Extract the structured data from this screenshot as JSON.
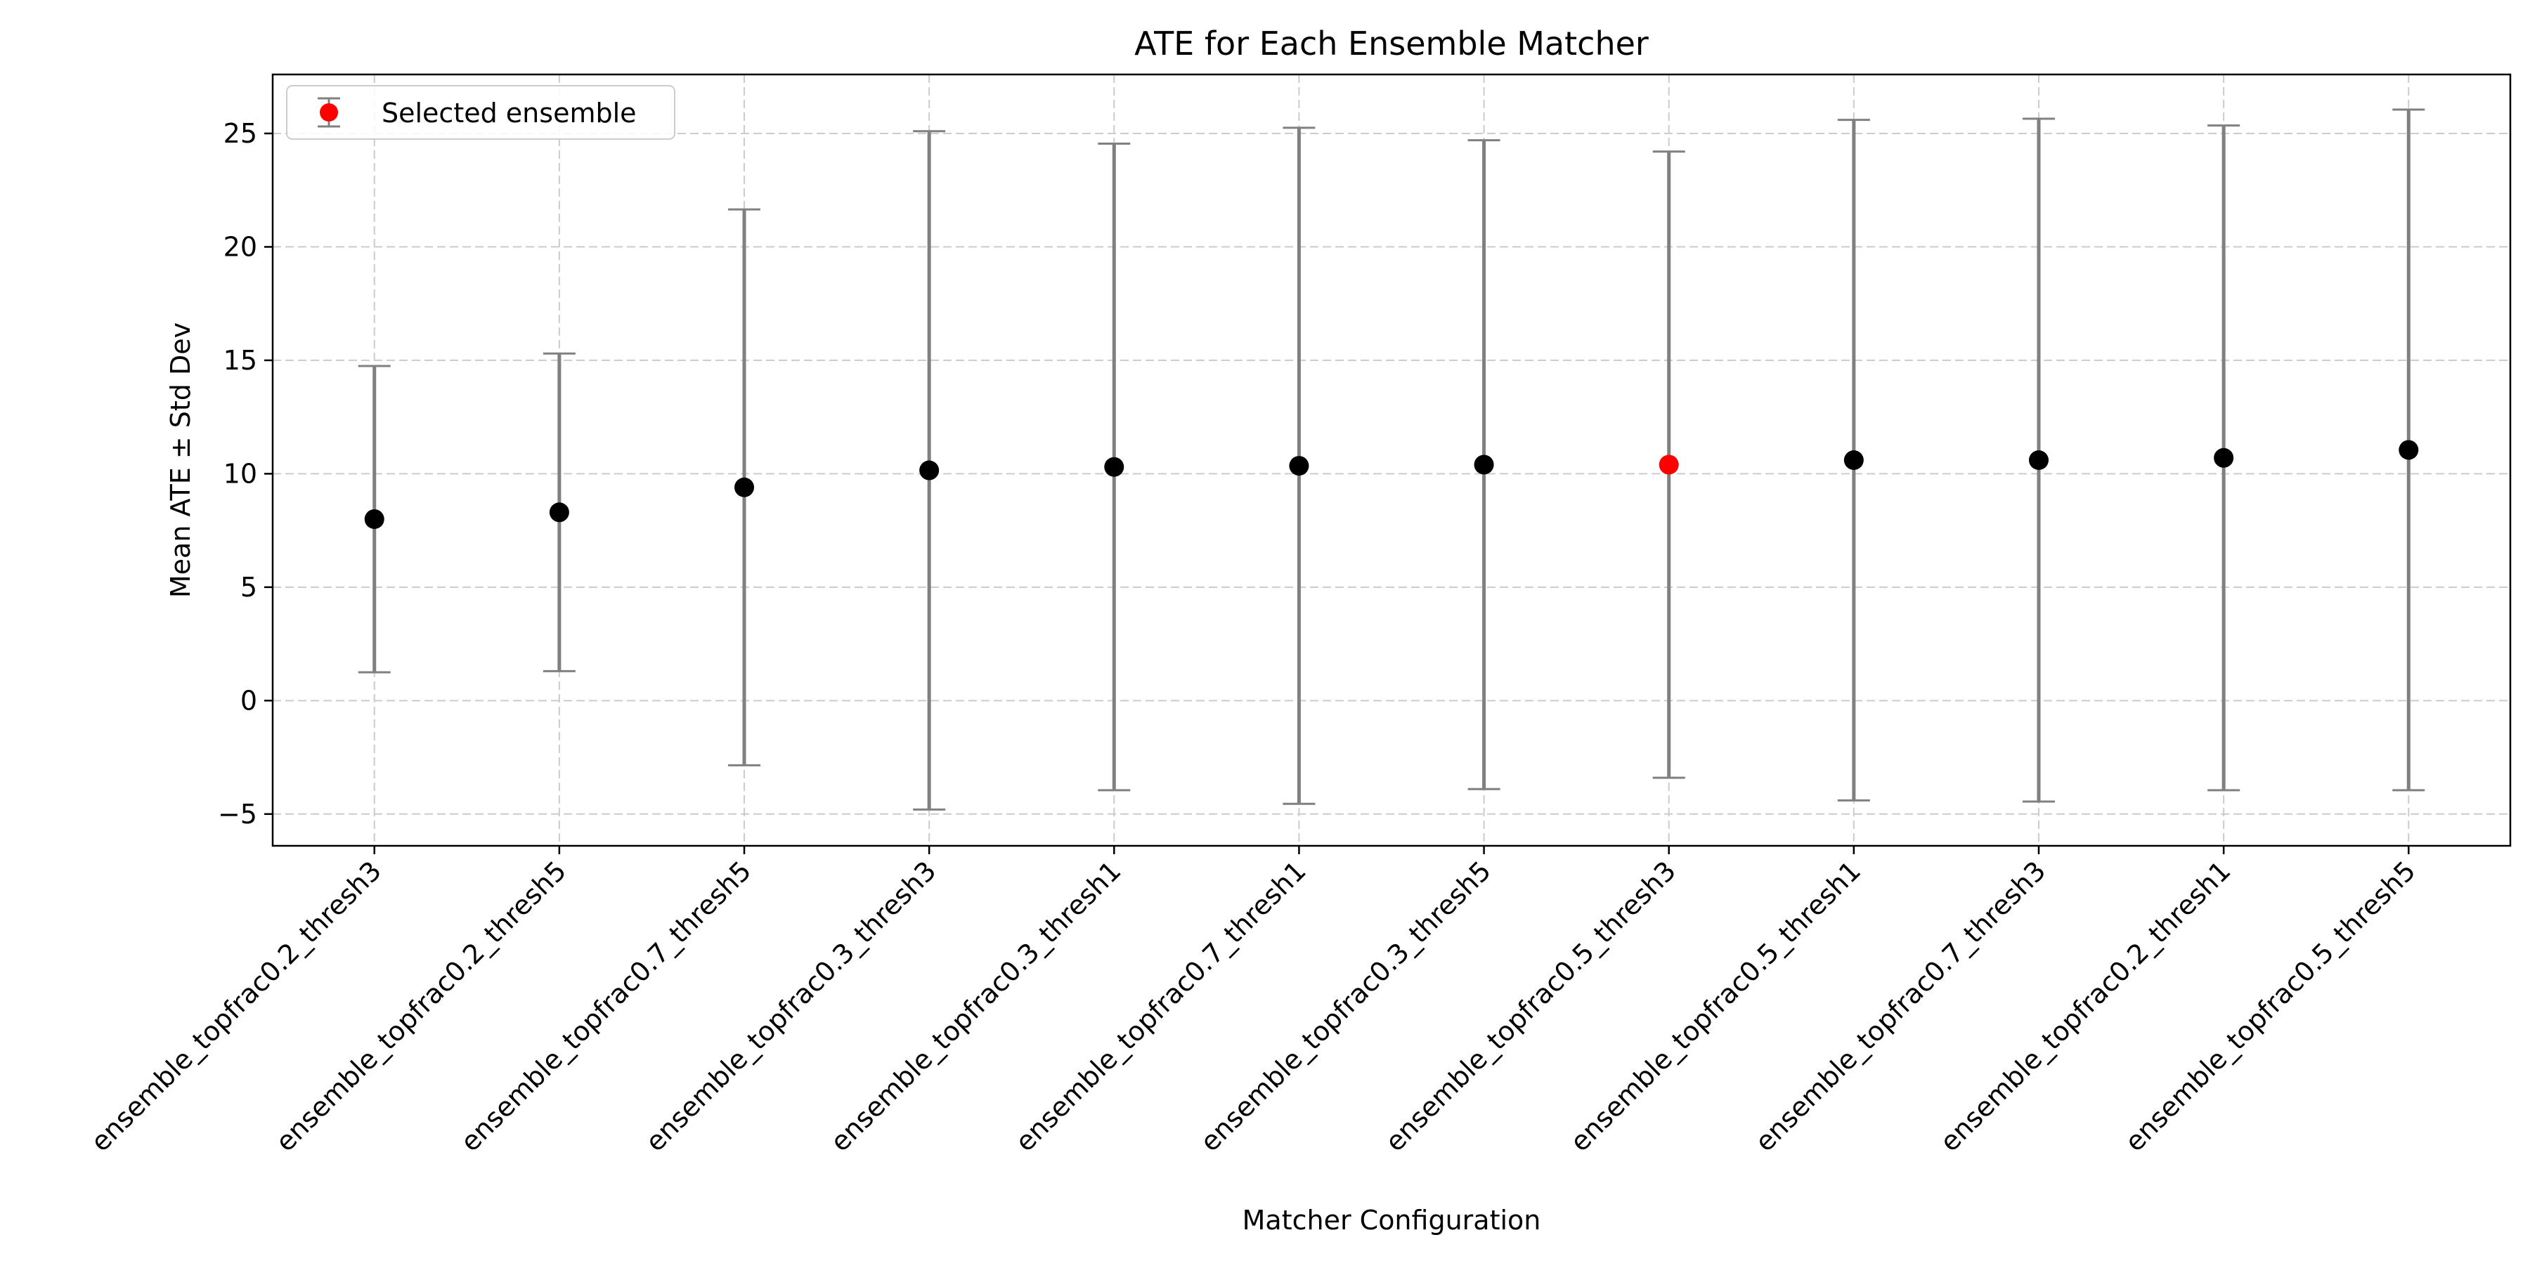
{
  "chart_data": {
    "type": "scatter",
    "title": "ATE for Each Ensemble Matcher",
    "xlabel": "Matcher Configuration",
    "ylabel": "Mean ATE ± Std Dev",
    "ylim": [
      -6.4,
      27.6
    ],
    "yticks": [
      -5,
      0,
      5,
      10,
      15,
      20,
      25
    ],
    "grid": true,
    "legend": {
      "placement": "top-left",
      "entries": [
        "Selected ensemble"
      ]
    },
    "categories": [
      "ensemble_topfrac0.2_thresh3",
      "ensemble_topfrac0.2_thresh5",
      "ensemble_topfrac0.7_thresh5",
      "ensemble_topfrac0.3_thresh3",
      "ensemble_topfrac0.3_thresh1",
      "ensemble_topfrac0.7_thresh1",
      "ensemble_topfrac0.3_thresh5",
      "ensemble_topfrac0.5_thresh3",
      "ensemble_topfrac0.5_thresh1",
      "ensemble_topfrac0.7_thresh3",
      "ensemble_topfrac0.2_thresh1",
      "ensemble_topfrac0.5_thresh5"
    ],
    "mean": [
      8.0,
      8.3,
      9.4,
      10.15,
      10.3,
      10.35,
      10.4,
      10.4,
      10.6,
      10.6,
      10.7,
      11.05
    ],
    "std": [
      6.75,
      7.0,
      12.25,
      14.95,
      14.25,
      14.9,
      14.3,
      13.8,
      15.0,
      15.05,
      14.65,
      15.0
    ],
    "selected_index": 7
  },
  "colors": {
    "point": "#000000",
    "selected_point": "#ff0000",
    "error_bar": "#808080",
    "grid": "#cccccc",
    "axes": "#000000"
  }
}
